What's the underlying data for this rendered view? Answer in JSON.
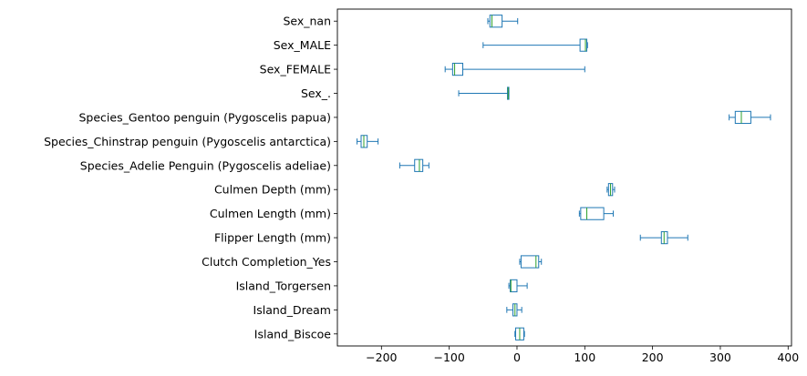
{
  "chart_data": {
    "type": "boxplot",
    "orientation": "horizontal",
    "title": "",
    "xlabel": "",
    "ylabel": "",
    "xlim": [
      -265,
      405
    ],
    "xticks": [
      -200,
      -100,
      0,
      100,
      200,
      300,
      400
    ],
    "xtick_labels": [
      "−200",
      "−100",
      "0",
      "100",
      "200",
      "300",
      "400"
    ],
    "grid": false,
    "box_color": "#1f77b4",
    "median_color": "#2ca02c",
    "categories": [
      "Island_Biscoe",
      "Island_Dream",
      "Island_Torgersen",
      "Clutch Completion_Yes",
      "Flipper Length (mm)",
      "Culmen Length (mm)",
      "Culmen Depth (mm)",
      "Species_Adelie Penguin (Pygoscelis adeliae)",
      "Species_Chinstrap penguin (Pygoscelis antarctica)",
      "Species_Gentoo penguin (Pygoscelis papua)",
      "Sex_.",
      "Sex_FEMALE",
      "Sex_MALE",
      "Sex_nan"
    ],
    "boxes": [
      {
        "whislo": -3,
        "q1": -2,
        "med": 4,
        "q3": 10,
        "whishi": 11
      },
      {
        "whislo": -15,
        "q1": -6,
        "med": -3,
        "q3": 0,
        "whishi": 7
      },
      {
        "whislo": -12,
        "q1": -10,
        "med": -9,
        "q3": 0,
        "whishi": 15
      },
      {
        "whislo": 4,
        "q1": 6,
        "med": 28,
        "q3": 32,
        "whishi": 36
      },
      {
        "whislo": 182,
        "q1": 213,
        "med": 217,
        "q3": 222,
        "whishi": 252
      },
      {
        "whislo": 92,
        "q1": 94,
        "med": 103,
        "q3": 128,
        "whishi": 142
      },
      {
        "whislo": 133,
        "q1": 135,
        "med": 138,
        "q3": 141,
        "whishi": 144
      },
      {
        "whislo": -173,
        "q1": -151,
        "med": -144,
        "q3": -139,
        "whishi": -130
      },
      {
        "whislo": -236,
        "q1": -230,
        "med": -226,
        "q3": -221,
        "whishi": -205
      },
      {
        "whislo": 313,
        "q1": 322,
        "med": 331,
        "q3": 345,
        "whishi": 374
      },
      {
        "whislo": -86,
        "q1": -14,
        "med": -13,
        "q3": -12,
        "whishi": -12
      },
      {
        "whislo": -106,
        "q1": -95,
        "med": -92,
        "q3": -80,
        "whishi": 100
      },
      {
        "whislo": -50,
        "q1": 93,
        "med": 101,
        "q3": 103,
        "whishi": 104
      },
      {
        "whislo": -43,
        "q1": -40,
        "med": -37,
        "q3": -22,
        "whishi": 1
      }
    ]
  }
}
